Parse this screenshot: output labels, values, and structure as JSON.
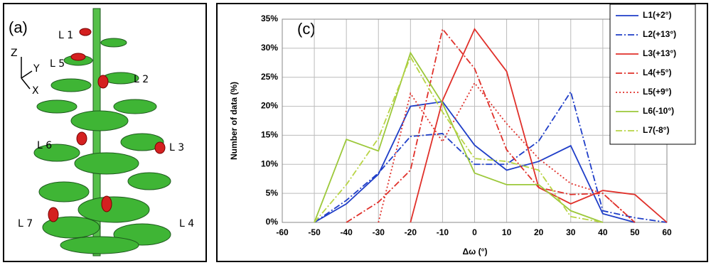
{
  "image_panel": {
    "label": "(a)",
    "leaf_labels": [
      "L 1",
      "L 5",
      "L 2",
      "L 6",
      "L 3",
      "L 7",
      "L 4"
    ],
    "axes": [
      "Z",
      "Y",
      "X"
    ]
  },
  "chart_data": {
    "type": "line",
    "title": "(c)",
    "xlabel": "Δω (°)",
    "ylabel": "Number of data (%)",
    "x": [
      -60,
      -50,
      -40,
      -30,
      -20,
      -10,
      0,
      10,
      20,
      30,
      40,
      50,
      60
    ],
    "xlim": [
      -60,
      60
    ],
    "xticks": [
      -60,
      -50,
      -40,
      -30,
      -20,
      -10,
      0,
      10,
      20,
      30,
      40,
      50,
      60
    ],
    "ylim": [
      0,
      35
    ],
    "yticks": [
      {
        "value": 0,
        "label": "0%"
      },
      {
        "value": 5,
        "label": "5%"
      },
      {
        "value": 10,
        "label": "10%"
      },
      {
        "value": 15,
        "label": "15%"
      },
      {
        "value": 20,
        "label": "20%"
      },
      {
        "value": 25,
        "label": "25%"
      },
      {
        "value": 30,
        "label": "30%"
      },
      {
        "value": 35,
        "label": "35%"
      }
    ],
    "grid": true,
    "legend": "upper right",
    "series": [
      {
        "name": "L1(+2°)",
        "color": "#1f3ec8",
        "dash": "solid",
        "values": [
          null,
          0,
          3.2,
          8.3,
          20,
          20.8,
          13.3,
          9,
          10.5,
          13.2,
          1.5,
          0,
          null
        ]
      },
      {
        "name": "L2(+13°)",
        "color": "#1f3ec8",
        "dash": "dashdot",
        "values": [
          null,
          0,
          3.8,
          8.5,
          14.8,
          15.3,
          10,
          10,
          14,
          22.5,
          2,
          0.8,
          0
        ]
      },
      {
        "name": "L3(+13°)",
        "color": "#e0302a",
        "dash": "solid",
        "values": [
          null,
          null,
          null,
          null,
          0,
          21,
          33.3,
          26,
          6,
          3.2,
          5.5,
          4.8,
          0
        ]
      },
      {
        "name": "L4(+5°)",
        "color": "#e0302a",
        "dash": "dashdot",
        "values": [
          null,
          null,
          0,
          3.5,
          9,
          33.3,
          26.5,
          12.5,
          6,
          4.8,
          5,
          0,
          null
        ]
      },
      {
        "name": "L5(+9°)",
        "color": "#e0302a",
        "dash": "dot",
        "values": [
          null,
          null,
          null,
          0,
          22.2,
          13.9,
          24,
          17,
          11,
          6.7,
          5,
          0,
          null
        ]
      },
      {
        "name": "L6(-10°)",
        "color": "#9cc83a",
        "dash": "solid",
        "values": [
          null,
          0,
          14.3,
          12.3,
          29.2,
          20.5,
          8.5,
          6.5,
          6.5,
          2,
          0,
          null,
          null
        ]
      },
      {
        "name": "L7(-8°)",
        "color": "#b8d444",
        "dash": "dashdot",
        "values": [
          null,
          0,
          6.5,
          14.5,
          28.5,
          19,
          11,
          10.5,
          9,
          1,
          0,
          null,
          null
        ]
      }
    ]
  }
}
